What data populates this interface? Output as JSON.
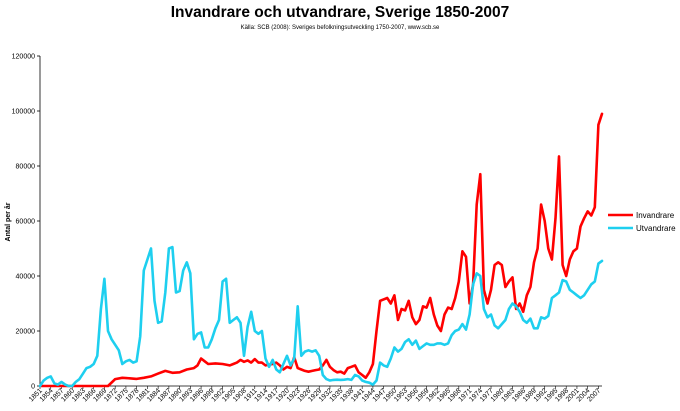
{
  "chart_data": {
    "type": "line",
    "title": "Invandrare och utvandrare, Sverige 1850-2007",
    "subtitle": "Källa: SCB (2008): Sveriges befolkningsutveckling 1750-2007, www.scb.se",
    "ylabel": "Antal per år",
    "xlabel": "",
    "ylim": [
      0,
      120000
    ],
    "yticks": [
      "0",
      "20000",
      "40000",
      "60000",
      "80000",
      "100000",
      "120000"
    ],
    "xticks": [
      "1851",
      "1854",
      "1857",
      "1860",
      "1863",
      "1866",
      "1869",
      "1872",
      "1875",
      "1878",
      "1881",
      "1884",
      "1887",
      "1890",
      "1893",
      "1896",
      "1899",
      "1902",
      "1905",
      "1908",
      "1911",
      "1914",
      "1917",
      "1920",
      "1923",
      "1926",
      "1929",
      "1932",
      "1935",
      "1938",
      "1941",
      "1944",
      "1947",
      "1950",
      "1953",
      "1956",
      "1959",
      "1962",
      "1965",
      "1968",
      "1971",
      "1974",
      "1977",
      "1980",
      "1983",
      "1986",
      "1989",
      "1992",
      "1995",
      "1998",
      "2001",
      "2004",
      "2007"
    ],
    "grid": false,
    "legend": "right",
    "series": [
      {
        "name": "Invandrare",
        "color": "#ff0000",
        "points": [
          [
            1851,
            0
          ],
          [
            1855,
            0
          ],
          [
            1860,
            0
          ],
          [
            1865,
            0
          ],
          [
            1870,
            0
          ],
          [
            1872,
            2500
          ],
          [
            1874,
            3000
          ],
          [
            1876,
            2800
          ],
          [
            1878,
            2600
          ],
          [
            1880,
            3000
          ],
          [
            1882,
            3500
          ],
          [
            1884,
            4500
          ],
          [
            1886,
            5500
          ],
          [
            1888,
            4800
          ],
          [
            1890,
            5000
          ],
          [
            1892,
            6000
          ],
          [
            1894,
            6500
          ],
          [
            1895,
            7500
          ],
          [
            1896,
            10000
          ],
          [
            1897,
            9000
          ],
          [
            1898,
            8000
          ],
          [
            1900,
            8200
          ],
          [
            1902,
            8000
          ],
          [
            1904,
            7500
          ],
          [
            1905,
            8000
          ],
          [
            1906,
            8500
          ],
          [
            1907,
            9500
          ],
          [
            1908,
            8800
          ],
          [
            1909,
            9300
          ],
          [
            1910,
            8500
          ],
          [
            1911,
            9800
          ],
          [
            1912,
            8500
          ],
          [
            1913,
            8500
          ],
          [
            1914,
            7500
          ],
          [
            1915,
            7800
          ],
          [
            1916,
            8000
          ],
          [
            1917,
            8500
          ],
          [
            1918,
            7500
          ],
          [
            1919,
            6000
          ],
          [
            1920,
            7000
          ],
          [
            1921,
            6500
          ],
          [
            1922,
            10500
          ],
          [
            1923,
            6500
          ],
          [
            1924,
            6000
          ],
          [
            1925,
            5500
          ],
          [
            1926,
            5200
          ],
          [
            1927,
            5500
          ],
          [
            1928,
            5800
          ],
          [
            1929,
            6000
          ],
          [
            1930,
            7500
          ],
          [
            1931,
            9500
          ],
          [
            1932,
            7000
          ],
          [
            1933,
            5800
          ],
          [
            1934,
            5000
          ],
          [
            1935,
            5200
          ],
          [
            1936,
            4500
          ],
          [
            1937,
            6500
          ],
          [
            1938,
            7000
          ],
          [
            1939,
            7500
          ],
          [
            1940,
            5000
          ],
          [
            1941,
            4000
          ],
          [
            1942,
            3000
          ],
          [
            1943,
            5000
          ],
          [
            1944,
            8000
          ],
          [
            1945,
            20000
          ],
          [
            1946,
            31000
          ],
          [
            1947,
            31500
          ],
          [
            1948,
            32000
          ],
          [
            1949,
            30000
          ],
          [
            1950,
            33000
          ],
          [
            1951,
            24000
          ],
          [
            1952,
            28000
          ],
          [
            1953,
            27500
          ],
          [
            1954,
            31000
          ],
          [
            1955,
            25000
          ],
          [
            1956,
            22500
          ],
          [
            1957,
            24000
          ],
          [
            1958,
            29000
          ],
          [
            1959,
            28500
          ],
          [
            1960,
            32000
          ],
          [
            1961,
            26000
          ],
          [
            1962,
            22000
          ],
          [
            1963,
            20000
          ],
          [
            1964,
            26000
          ],
          [
            1965,
            28500
          ],
          [
            1966,
            28000
          ],
          [
            1967,
            32000
          ],
          [
            1968,
            38000
          ],
          [
            1969,
            49000
          ],
          [
            1970,
            47000
          ],
          [
            1971,
            30000
          ],
          [
            1972,
            37000
          ],
          [
            1973,
            66000
          ],
          [
            1974,
            77000
          ],
          [
            1975,
            35000
          ],
          [
            1976,
            30000
          ],
          [
            1977,
            35000
          ],
          [
            1978,
            44000
          ],
          [
            1979,
            45000
          ],
          [
            1980,
            44000
          ],
          [
            1981,
            36000
          ],
          [
            1982,
            38000
          ],
          [
            1983,
            39500
          ],
          [
            1984,
            28000
          ],
          [
            1985,
            30000
          ],
          [
            1986,
            27000
          ],
          [
            1987,
            33000
          ],
          [
            1988,
            36000
          ],
          [
            1989,
            45000
          ],
          [
            1990,
            50000
          ],
          [
            1991,
            66000
          ],
          [
            1992,
            60000
          ],
          [
            1993,
            50000
          ],
          [
            1994,
            46000
          ],
          [
            1995,
            61000
          ],
          [
            1996,
            83500
          ],
          [
            1997,
            44000
          ],
          [
            1998,
            40000
          ],
          [
            1999,
            46000
          ],
          [
            2000,
            49000
          ],
          [
            2001,
            50000
          ],
          [
            2002,
            58000
          ],
          [
            2003,
            61000
          ],
          [
            2004,
            63500
          ],
          [
            2005,
            62000
          ],
          [
            2006,
            65000
          ],
          [
            2007,
            95000
          ],
          [
            2008,
            99000
          ]
        ]
      },
      {
        "name": "Utvandrare",
        "color": "#1ecfef",
        "points": [
          [
            1851,
            0
          ],
          [
            1852,
            2000
          ],
          [
            1853,
            3000
          ],
          [
            1854,
            3500
          ],
          [
            1855,
            1000
          ],
          [
            1856,
            500
          ],
          [
            1857,
            1500
          ],
          [
            1858,
            500
          ],
          [
            1859,
            0
          ],
          [
            1860,
            0
          ],
          [
            1861,
            1500
          ],
          [
            1862,
            2500
          ],
          [
            1863,
            4500
          ],
          [
            1864,
            6500
          ],
          [
            1865,
            7000
          ],
          [
            1866,
            8000
          ],
          [
            1867,
            11000
          ],
          [
            1868,
            28000
          ],
          [
            1869,
            39000
          ],
          [
            1870,
            20000
          ],
          [
            1871,
            17000
          ],
          [
            1872,
            15000
          ],
          [
            1873,
            13000
          ],
          [
            1874,
            8000
          ],
          [
            1875,
            9000
          ],
          [
            1876,
            9500
          ],
          [
            1877,
            8500
          ],
          [
            1878,
            9000
          ],
          [
            1879,
            18000
          ],
          [
            1880,
            42000
          ],
          [
            1881,
            46000
          ],
          [
            1882,
            50000
          ],
          [
            1883,
            31000
          ],
          [
            1884,
            23000
          ],
          [
            1885,
            23500
          ],
          [
            1886,
            34000
          ],
          [
            1887,
            50000
          ],
          [
            1888,
            50500
          ],
          [
            1889,
            34000
          ],
          [
            1890,
            34500
          ],
          [
            1891,
            42000
          ],
          [
            1892,
            45000
          ],
          [
            1893,
            41000
          ],
          [
            1894,
            17000
          ],
          [
            1895,
            19000
          ],
          [
            1896,
            19500
          ],
          [
            1897,
            14000
          ],
          [
            1898,
            14000
          ],
          [
            1899,
            17000
          ],
          [
            1900,
            21000
          ],
          [
            1901,
            24000
          ],
          [
            1902,
            38000
          ],
          [
            1903,
            39000
          ],
          [
            1904,
            23000
          ],
          [
            1905,
            24000
          ],
          [
            1906,
            25000
          ],
          [
            1907,
            23000
          ],
          [
            1908,
            11000
          ],
          [
            1909,
            21500
          ],
          [
            1910,
            27000
          ],
          [
            1911,
            20000
          ],
          [
            1912,
            19000
          ],
          [
            1913,
            20000
          ],
          [
            1914,
            10000
          ],
          [
            1915,
            7000
          ],
          [
            1916,
            9500
          ],
          [
            1917,
            6000
          ],
          [
            1918,
            5000
          ],
          [
            1919,
            8000
          ],
          [
            1920,
            11000
          ],
          [
            1921,
            7500
          ],
          [
            1922,
            10000
          ],
          [
            1923,
            29000
          ],
          [
            1924,
            11000
          ],
          [
            1925,
            12500
          ],
          [
            1926,
            13000
          ],
          [
            1927,
            12500
          ],
          [
            1928,
            13000
          ],
          [
            1929,
            11000
          ],
          [
            1930,
            4000
          ],
          [
            1931,
            2500
          ],
          [
            1932,
            2000
          ],
          [
            1933,
            2200
          ],
          [
            1934,
            2300
          ],
          [
            1935,
            2200
          ],
          [
            1936,
            2300
          ],
          [
            1937,
            2500
          ],
          [
            1938,
            2200
          ],
          [
            1939,
            4000
          ],
          [
            1940,
            3500
          ],
          [
            1941,
            2000
          ],
          [
            1942,
            1500
          ],
          [
            1943,
            1200
          ],
          [
            1944,
            500
          ],
          [
            1945,
            2000
          ],
          [
            1946,
            8500
          ],
          [
            1947,
            7500
          ],
          [
            1948,
            7000
          ],
          [
            1949,
            10000
          ],
          [
            1950,
            14000
          ],
          [
            1951,
            12500
          ],
          [
            1952,
            13500
          ],
          [
            1953,
            16000
          ],
          [
            1954,
            17000
          ],
          [
            1955,
            15000
          ],
          [
            1956,
            16500
          ],
          [
            1957,
            13500
          ],
          [
            1958,
            14500
          ],
          [
            1959,
            15500
          ],
          [
            1960,
            15000
          ],
          [
            1961,
            15000
          ],
          [
            1962,
            15500
          ],
          [
            1963,
            15500
          ],
          [
            1964,
            15000
          ],
          [
            1965,
            15500
          ],
          [
            1966,
            18500
          ],
          [
            1967,
            20000
          ],
          [
            1968,
            20500
          ],
          [
            1969,
            22500
          ],
          [
            1970,
            20500
          ],
          [
            1971,
            26000
          ],
          [
            1972,
            37000
          ],
          [
            1973,
            41000
          ],
          [
            1974,
            40000
          ],
          [
            1975,
            28000
          ],
          [
            1976,
            25000
          ],
          [
            1977,
            26000
          ],
          [
            1978,
            22000
          ],
          [
            1979,
            21000
          ],
          [
            1980,
            22500
          ],
          [
            1981,
            24000
          ],
          [
            1982,
            28000
          ],
          [
            1983,
            30000
          ],
          [
            1984,
            29000
          ],
          [
            1985,
            27000
          ],
          [
            1986,
            24000
          ],
          [
            1987,
            23000
          ],
          [
            1988,
            24500
          ],
          [
            1989,
            21000
          ],
          [
            1990,
            21000
          ],
          [
            1991,
            25000
          ],
          [
            1992,
            24500
          ],
          [
            1993,
            25500
          ],
          [
            1994,
            32000
          ],
          [
            1995,
            33000
          ],
          [
            1996,
            34000
          ],
          [
            1997,
            38500
          ],
          [
            1998,
            38000
          ],
          [
            1999,
            35000
          ],
          [
            2000,
            34000
          ],
          [
            2001,
            33000
          ],
          [
            2002,
            32000
          ],
          [
            2003,
            33000
          ],
          [
            2004,
            35000
          ],
          [
            2005,
            37000
          ],
          [
            2006,
            38000
          ],
          [
            2007,
            44500
          ],
          [
            2008,
            45500
          ]
        ]
      }
    ]
  }
}
